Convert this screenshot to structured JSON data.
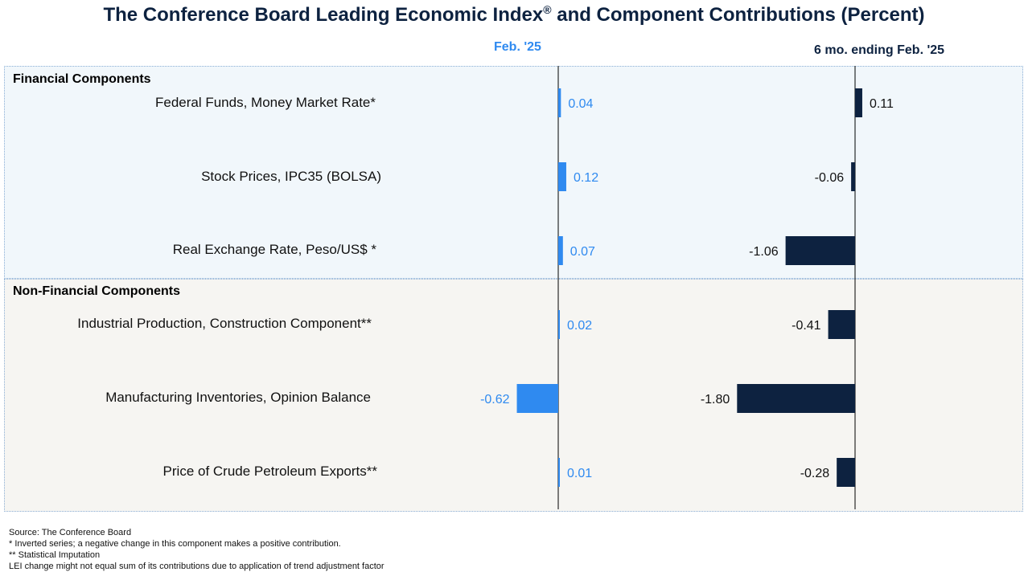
{
  "title": "The Conference Board Leading Economic Index",
  "title_mark": "®",
  "title_suffix": " and Component Contributions (Percent)",
  "column_headers": {
    "monthly": "Feb. '25",
    "six_month": "6 mo. ending Feb. '25"
  },
  "sections": [
    {
      "title": "Financial Components"
    },
    {
      "title": "Non-Financial Components"
    }
  ],
  "colors": {
    "monthly_bar": "#2f8af0",
    "six_month_bar": "#0d2240",
    "financial_bg": "#f1f7fb",
    "non_financial_bg": "#f6f5f2"
  },
  "chart_data": {
    "type": "bar",
    "orientation": "horizontal",
    "categories": [
      "Federal Funds, Money Market Rate*",
      "Stock Prices, IPC35 (BOLSA)",
      "Real Exchange Rate, Peso/US$ *",
      "Industrial Production, Construction Component**",
      "Manufacturing Inventories, Opinion Balance",
      "Price of Crude Petroleum Exports**"
    ],
    "series": [
      {
        "name": "Feb. '25",
        "values": [
          0.04,
          0.12,
          0.07,
          0.02,
          -0.62,
          0.01
        ]
      },
      {
        "name": "6 mo. ending Feb. '25",
        "values": [
          0.11,
          -0.06,
          -1.06,
          -0.41,
          -1.8,
          -0.28
        ]
      }
    ],
    "value_labels": [
      [
        "0.04",
        "0.12",
        "0.07",
        "0.02",
        "-0.62",
        "0.01"
      ],
      [
        "0.11",
        "-0.06",
        "-1.06",
        "-0.41",
        "-1.80",
        "-0.28"
      ]
    ]
  },
  "footnotes": [
    "Source: The Conference Board",
    "*  Inverted series; a negative change in this component makes a positive contribution.",
    "** Statistical Imputation",
    "LEI change might not equal sum of  its contributions due to application of trend adjustment factor"
  ]
}
